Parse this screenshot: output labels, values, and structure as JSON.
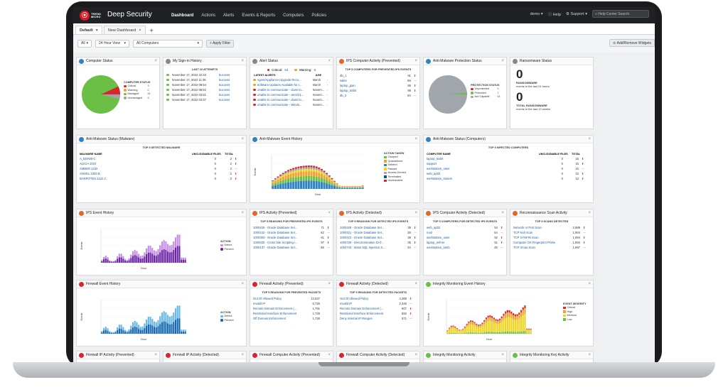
{
  "app": {
    "brand_line1": "TREND",
    "brand_line2": "MICRO",
    "product": "Deep Security"
  },
  "nav": {
    "items": [
      "Dashboard",
      "Actions",
      "Alerts",
      "Events & Reports",
      "Computers",
      "Policies"
    ],
    "user": "demo ▾",
    "help": "Help",
    "support": "Support ▾",
    "search_placeholder": "Help Center Search"
  },
  "tabs": [
    {
      "label": "Default"
    },
    {
      "label": "New Dashboard"
    }
  ],
  "filters": {
    "scope": "All",
    "range": "24 Hour View",
    "computers": "All Computers",
    "apply": "+ Apply Filter",
    "add_remove": "Add/Remove Widgets"
  },
  "colors": {
    "red": "#d9262e",
    "green": "#6cbf45",
    "blue": "#2f83c5",
    "orange": "#f0a32c",
    "yellow": "#f2d31b",
    "purple": "#8e3ec4",
    "gray": "#a0a6ab"
  },
  "widgets": {
    "computer_status": {
      "title": "Computer Status",
      "legend_title": "COMPUTER STATUS",
      "items": [
        {
          "label": "Critical",
          "value": "3",
          "color": "#d9262e"
        },
        {
          "label": "Warning",
          "value": "0",
          "color": "#f0a32c"
        },
        {
          "label": "Managed",
          "value": "51",
          "color": "#6cbf45"
        },
        {
          "label": "Unmanaged",
          "value": "6",
          "color": "#a0a6ab"
        }
      ]
    },
    "signin": {
      "title": "My Sign-in History",
      "subtitle": "LAST 10 ATTEMPTS",
      "rows": [
        [
          "November 17, 2022 22:33",
          "Success"
        ],
        [
          "November 17, 2022 11:36",
          "Success"
        ],
        [
          "November 17, 2022 08:54",
          "Success"
        ],
        [
          "November 17, 2022 08:52",
          "Success"
        ],
        [
          "November 17, 2022 03:51",
          "Success"
        ],
        [
          "November 17, 2022 03:37",
          "Success"
        ]
      ]
    },
    "alerts": {
      "title": "Alert Status",
      "critical_label": "Critical:",
      "critical_value": "54",
      "warning_label": "Warning:",
      "warning_value": "6",
      "latest": "LATEST ALERTS",
      "age": "AGE",
      "rows": [
        [
          "Agent/Appliance Upgrade Reco...",
          "March",
          "#f0a32c"
        ],
        [
          "Software Updates Available for I...",
          "March",
          "#f0a32c"
        ],
        [
          "Unable to communicate - dows to...",
          "Novem...",
          "#d9262e"
        ],
        [
          "Unable to communicate - win2/21...",
          "Novem...",
          "#d9262e"
        ],
        [
          "Unable to communicate - dows to...",
          "Novem...",
          "#d9262e"
        ],
        [
          "Unable to communicate - Windo...",
          "Novem...",
          "#d9262e"
        ]
      ]
    },
    "ips_computer_prevented": {
      "title": "IPS Computer Activity (Prevented)",
      "subtitle": "TOP 5 COMPUTERS FOR PREVENTED IPS EVENTS",
      "rows": [
        [
          "db_1",
          "91"
        ],
        [
          "sales",
          "89"
        ],
        [
          "laptop_jpan",
          "86"
        ],
        [
          "laptop_trabit",
          "86"
        ],
        [
          "db_2",
          "84"
        ]
      ]
    },
    "antimalware_protection": {
      "title": "Anti-Malware Protection Status",
      "legend_title": "PROTECTION STATUS",
      "items": [
        {
          "label": "Unprotected",
          "value": "0",
          "color": "#d9262e"
        },
        {
          "label": "Protected",
          "value": "1",
          "color": "#6cbf45"
        },
        {
          "label": "Not Capable",
          "value": "61",
          "color": "#a0a6ab"
        }
      ]
    },
    "ransomware": {
      "title": "Ransomware Status",
      "count1": "0",
      "label1a": "RANSOMWARE",
      "label1b": "events in the last 24 hours",
      "count2": "0",
      "label2a": "TOTAL RANSOMWARE",
      "label2b": "events in the last 13 weeks"
    },
    "am_malware": {
      "title": "Anti-Malware Status (Malware)",
      "subtitle": "TOP 5 DETECTED MALWARE",
      "col1": "MALWARE NAME",
      "col2": "UNCLEANABLE FILES",
      "col3": "TOTAL",
      "rows": [
        [
          "A_BONIB-C",
          "0",
          "2"
        ],
        [
          "ALICIA ZOO",
          "0",
          "2"
        ],
        [
          "AMBER.1432",
          "0",
          "2"
        ],
        [
          "ANGEL.1000.B",
          "0",
          "2"
        ],
        [
          "BARROTES.1222.C",
          "0",
          "2"
        ]
      ]
    },
    "am_event_history": {
      "title": "Anti-Malware Event History",
      "ylabel": "Events",
      "xlabel": "Hour",
      "legend_title": "ACTION TAKEN",
      "legend": [
        [
          "Cleaned",
          "#6cbf45"
        ],
        [
          "Quarantined",
          "#f0a32c"
        ],
        [
          "Deleted",
          "#2f83c5"
        ],
        [
          "Passed",
          "#f2d31b"
        ],
        [
          "Access Denied",
          "#a0a6ab"
        ],
        [
          "Terminated",
          "#1d4f91"
        ],
        [
          "Uncleanable",
          "#d9262e"
        ]
      ]
    },
    "am_computers": {
      "title": "Anti-Malware Status (Computers)",
      "subtitle": "TOP 5 INFECTED COMPUTERS",
      "col1": "COMPUTER NAME",
      "col2": "UNCLEANABLE FILES",
      "col3": "TOTAL",
      "rows": [
        [
          "laptop_trabit",
          "0",
          "15"
        ],
        [
          "support",
          "0",
          "15"
        ],
        [
          "workstation_uses",
          "0",
          "15"
        ],
        [
          "web_ap02",
          "0",
          "13"
        ],
        [
          "workstation_trasem",
          "0",
          "13"
        ]
      ]
    },
    "ips_event_history": {
      "title": "IPS Event History",
      "ylabel": "Events",
      "xlabel": "Hour",
      "legend_title": "ACTION",
      "legend": [
        [
          "Detect",
          "#c58be6"
        ],
        [
          "Prevent",
          "#6a22a5"
        ]
      ]
    },
    "ips_prevented": {
      "title": "IPS Activity (Prevented)",
      "subtitle": "TOP 5 REASONS FOR PREVENTED IPS EVENTS",
      "rows": [
        [
          "1000426 - Oracle Database Ser...",
          "71"
        ],
        [
          "1000142 - Oracle Database Ser...",
          "62"
        ],
        [
          "1000393 - Oracle Database Ser...",
          "61"
        ],
        [
          "1000530 - Cross Site Scripting i...",
          "57"
        ],
        [
          "1000137 - Oracle Database Ser...",
          "56"
        ]
      ]
    },
    "ips_detected": {
      "title": "IPS Activity (Detected)",
      "subtitle": "TOP 5 REASONS FOR DETECTED IPS EVENTS",
      "rows": [
        [
          "1000428 - Oracle Database Ser...",
          "38"
        ],
        [
          "1000421 - Oracle Database Ser...",
          "38"
        ],
        [
          "1000423 - Oracle Database Ser...",
          "36"
        ],
        [
          "1000739 - DirectAnimation DAT...",
          "35"
        ],
        [
          "1002743 - Mass SQL Injection S...",
          "34"
        ]
      ]
    },
    "ips_computer_detected": {
      "title": "IPS Computer Activity (Detected)",
      "subtitle": "TOP 5 COMPUTERS FOR DETECTED IPS EVENTS",
      "rows": [
        [
          "web_ap02",
          "54"
        ],
        [
          "mail",
          "54"
        ],
        [
          "workstation_uses",
          "52"
        ],
        [
          "laptop_mifros",
          "51"
        ],
        [
          "workstation_lamb",
          "46"
        ]
      ]
    },
    "recon": {
      "title": "Reconnaissance Scan Activity",
      "subtitle": "TOP 5 SCANS DETECTED",
      "rows": [
        [
          "Network or Port Scan",
          "2,689"
        ],
        [
          "TCP Null Scan",
          "1,904"
        ],
        [
          "TCP SYNFIN Scan",
          "1,894"
        ],
        [
          "Computer OS Fingerprint Probe",
          "1,894"
        ],
        [
          "TCP Xmas Scan",
          "1,897"
        ]
      ]
    },
    "fw_history": {
      "title": "Firewall Event History",
      "ylabel": "Events",
      "xlabel": "Hour",
      "legend_title": "ACTION",
      "legend": [
        [
          "Detect",
          "#69b6e8"
        ],
        [
          "Prevent",
          "#1466ae"
        ]
      ]
    },
    "fw_prevented": {
      "title": "Firewall Activity (Prevented)",
      "subtitle": "TOP 5 REASONS FOR PREVENTED PACKETS",
      "rows": [
        [
          "Out Of Allowed Policy",
          "13,637"
        ],
        [
          "Invalid IP",
          "6,725"
        ],
        [
          "Remote Domain Enforcement (...",
          "1,791"
        ],
        [
          "Restricted Interface Enforcement",
          "1,728"
        ],
        [
          "Off Domain Enforcement",
          "1,726"
        ]
      ]
    },
    "fw_detected": {
      "title": "Firewall Activity (Detected)",
      "subtitle": "TOP 5 REASONS FOR DETECTED PACKETS",
      "rows": [
        [
          "Out Of Allowed Policy",
          "4,369"
        ],
        [
          "Invalid IP",
          "2,346"
        ],
        [
          "Remote Domain Enforcement (...",
          "607"
        ],
        [
          "Restricted Interface Enforcement",
          "582"
        ],
        [
          "Deny Internal IP Ranges",
          "571"
        ]
      ]
    },
    "im_history": {
      "title": "Integrity Monitoring Event History",
      "ylabel": "Events",
      "xlabel": "Hour",
      "legend_title": "EVENT SEVERITY",
      "legend": [
        [
          "Critical",
          "#d9262e"
        ],
        [
          "High",
          "#f0a32c"
        ],
        [
          "Medium",
          "#f2d31b"
        ],
        [
          "Low",
          "#6cbf45"
        ]
      ]
    },
    "bottom": [
      "Firewall IP Activity (Prevented)",
      "Firewall IP Activity (Detected)",
      "Firewall Computer Activity (Prevented)",
      "Firewall Computer Activity (Detected)",
      "Integrity Monitoring Activity",
      "Integrity Monitoring Key Activity"
    ]
  }
}
